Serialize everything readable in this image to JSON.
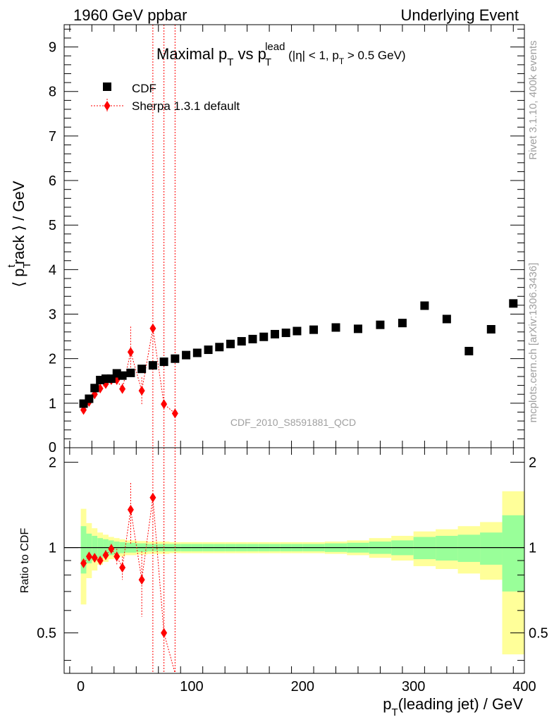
{
  "header": {
    "left": "1960 GeV ppbar",
    "right": "Underlying Event"
  },
  "side_labels": {
    "rivet": "Rivet 3.1.10,  400k events",
    "mcplots": "mcplots.cern.ch [arXiv:1306.3436]"
  },
  "colors": {
    "cdf": "#000000",
    "sherpa": "#ff0000",
    "band_inner": "#99ff99",
    "band_outer": "#ffff99"
  },
  "chart_data": [
    {
      "type": "scatter",
      "panel": "main",
      "title": {
        "prefix": "Maximal p",
        "sub1": "T",
        "mid": " vs p",
        "sub2": "T",
        "sup2": "lead",
        "cuts_a": " (|η| < 1, p",
        "cuts_sub": "T",
        "cuts_b": " > 0.5 GeV)"
      },
      "ylabel": {
        "open": "⟨ p",
        "sub": "T",
        "sup": "t",
        "rest": "rack ⟩ / GeV"
      },
      "watermark": "CDF_2010_S8591881_QCD",
      "xlim": [
        -15,
        400
      ],
      "ylim": [
        0,
        9.5
      ],
      "yticks": [
        "1",
        "2",
        "3",
        "4",
        "5",
        "6",
        "7",
        "8",
        "9"
      ],
      "ytick_values": [
        1,
        2,
        3,
        4,
        5,
        6,
        7,
        8,
        9
      ],
      "legend": {
        "position": "top-left",
        "entries": [
          "CDF",
          "Sherpa 1.3.1 default"
        ]
      },
      "series": [
        {
          "name": "CDF",
          "marker": "square",
          "points": [
            {
              "x": 2.5,
              "y": 0.99
            },
            {
              "x": 7.5,
              "y": 1.1
            },
            {
              "x": 12.5,
              "y": 1.34
            },
            {
              "x": 17.5,
              "y": 1.52
            },
            {
              "x": 22.5,
              "y": 1.55
            },
            {
              "x": 27.5,
              "y": 1.55
            },
            {
              "x": 32.5,
              "y": 1.67
            },
            {
              "x": 37.5,
              "y": 1.62
            },
            {
              "x": 45,
              "y": 1.68
            },
            {
              "x": 55,
              "y": 1.77
            },
            {
              "x": 65,
              "y": 1.85
            },
            {
              "x": 75,
              "y": 1.93
            },
            {
              "x": 85,
              "y": 2.0
            },
            {
              "x": 95,
              "y": 2.08
            },
            {
              "x": 105,
              "y": 2.13
            },
            {
              "x": 115,
              "y": 2.2
            },
            {
              "x": 125,
              "y": 2.26
            },
            {
              "x": 135,
              "y": 2.33
            },
            {
              "x": 145,
              "y": 2.39
            },
            {
              "x": 155,
              "y": 2.44
            },
            {
              "x": 165,
              "y": 2.49
            },
            {
              "x": 175,
              "y": 2.55
            },
            {
              "x": 185,
              "y": 2.58
            },
            {
              "x": 195,
              "y": 2.62
            },
            {
              "x": 210,
              "y": 2.65
            },
            {
              "x": 230,
              "y": 2.7
            },
            {
              "x": 250,
              "y": 2.67
            },
            {
              "x": 270,
              "y": 2.76
            },
            {
              "x": 290,
              "y": 2.8
            },
            {
              "x": 310,
              "y": 3.19
            },
            {
              "x": 330,
              "y": 2.89
            },
            {
              "x": 350,
              "y": 2.17
            },
            {
              "x": 370,
              "y": 2.66
            },
            {
              "x": 390,
              "y": 3.24
            }
          ]
        },
        {
          "name": "Sherpa 1.3.1 default",
          "marker": "diamond",
          "points": [
            {
              "x": 2.5,
              "y": 0.85,
              "err": 0.02
            },
            {
              "x": 7.5,
              "y": 1.03,
              "err": 0.03
            },
            {
              "x": 12.5,
              "y": 1.2,
              "err": 0.04
            },
            {
              "x": 17.5,
              "y": 1.33,
              "err": 0.05
            },
            {
              "x": 22.5,
              "y": 1.43,
              "err": 0.06
            },
            {
              "x": 27.5,
              "y": 1.52,
              "err": 0.07
            },
            {
              "x": 32.5,
              "y": 1.52,
              "err": 0.09
            },
            {
              "x": 37.5,
              "y": 1.32,
              "err": 0.12
            },
            {
              "x": 45,
              "y": 2.15,
              "err": 0.57
            },
            {
              "x": 55,
              "y": 1.28,
              "err": 0.3
            },
            {
              "x": 65,
              "y": 2.68,
              "err": 20
            },
            {
              "x": 75,
              "y": 0.98,
              "err": 20
            },
            {
              "x": 85,
              "y": 0.77,
              "err": 20
            }
          ]
        }
      ]
    },
    {
      "type": "scatter",
      "panel": "ratio",
      "ylabel": "Ratio to CDF",
      "xlabel": {
        "main": "p",
        "sub": "T",
        "rest": "(leading jet) / GeV"
      },
      "xlim": [
        -15,
        400
      ],
      "ylim": [
        0.36,
        2.25
      ],
      "xticks": [
        "0",
        "100",
        "200",
        "300",
        "400"
      ],
      "xtick_values": [
        0,
        100,
        200,
        300,
        400
      ],
      "yticks": [
        "0.5",
        "1",
        "2"
      ],
      "ytick_values": [
        0.5,
        1,
        2
      ],
      "reference": 1,
      "band_edges": [
        0,
        5,
        10,
        15,
        20,
        25,
        30,
        35,
        40,
        50,
        60,
        70,
        80,
        90,
        100,
        110,
        120,
        130,
        140,
        150,
        160,
        170,
        180,
        190,
        200,
        220,
        240,
        260,
        280,
        300,
        320,
        340,
        360,
        380,
        400
      ],
      "band_inner": [
        0.19,
        0.12,
        0.1,
        0.08,
        0.07,
        0.06,
        0.05,
        0.045,
        0.04,
        0.035,
        0.03,
        0.03,
        0.03,
        0.03,
        0.03,
        0.03,
        0.03,
        0.03,
        0.03,
        0.03,
        0.03,
        0.03,
        0.03,
        0.03,
        0.03,
        0.035,
        0.04,
        0.05,
        0.06,
        0.09,
        0.1,
        0.11,
        0.13,
        0.3
      ],
      "band_outer": [
        0.37,
        0.22,
        0.17,
        0.13,
        0.11,
        0.09,
        0.08,
        0.07,
        0.06,
        0.055,
        0.05,
        0.05,
        0.045,
        0.045,
        0.045,
        0.045,
        0.045,
        0.045,
        0.045,
        0.045,
        0.045,
        0.045,
        0.045,
        0.045,
        0.045,
        0.05,
        0.06,
        0.08,
        0.1,
        0.14,
        0.16,
        0.19,
        0.23,
        0.58
      ],
      "series": [
        {
          "name": "Sherpa 1.3.1 default",
          "marker": "diamond",
          "points": [
            {
              "x": 2.5,
              "y": 0.88,
              "err": 0.02
            },
            {
              "x": 7.5,
              "y": 0.93,
              "err": 0.03
            },
            {
              "x": 12.5,
              "y": 0.92,
              "err": 0.03
            },
            {
              "x": 17.5,
              "y": 0.9,
              "err": 0.03
            },
            {
              "x": 22.5,
              "y": 0.94,
              "err": 0.04
            },
            {
              "x": 27.5,
              "y": 0.99,
              "err": 0.04
            },
            {
              "x": 32.5,
              "y": 0.93,
              "err": 0.06
            },
            {
              "x": 37.5,
              "y": 0.85,
              "err": 0.08
            },
            {
              "x": 45,
              "y": 1.36,
              "err": 0.33
            },
            {
              "x": 55,
              "y": 0.77,
              "err": 0.2
            },
            {
              "x": 65,
              "y": 1.5,
              "err": 5
            },
            {
              "x": 75,
              "y": 0.5,
              "err": 5
            },
            {
              "x": 85,
              "y": 0.3,
              "err": 5
            }
          ]
        }
      ]
    }
  ]
}
